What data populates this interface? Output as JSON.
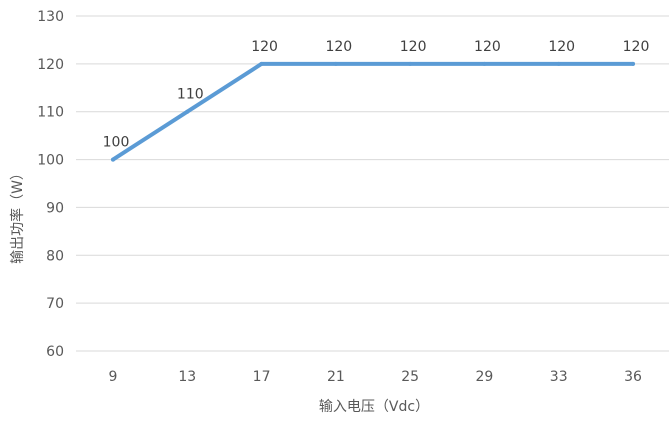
{
  "chart_data": {
    "type": "line",
    "title": "",
    "xlabel": "输入电压（Vdc）",
    "ylabel": "输出功率（W）",
    "categories": [
      "9",
      "13",
      "17",
      "21",
      "25",
      "29",
      "33",
      "36"
    ],
    "series": [
      {
        "values": [
          100,
          110,
          120,
          120,
          120,
          120,
          120,
          120
        ],
        "color": "#5b9bd5"
      }
    ],
    "data_labels": [
      "100",
      "110",
      "120",
      "120",
      "120",
      "120",
      "120",
      "120"
    ],
    "ylim": [
      60,
      130
    ],
    "yticks": [
      "60",
      "70",
      "80",
      "90",
      "100",
      "110",
      "120",
      "130"
    ],
    "grid": true,
    "legend": "none"
  }
}
